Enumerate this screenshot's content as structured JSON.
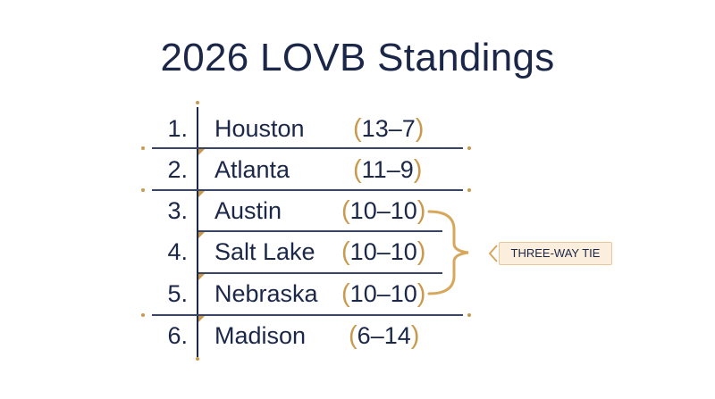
{
  "title": "2026 LOVB Standings",
  "standings": [
    {
      "rank": "1.",
      "team": "Houston",
      "record": "13–7"
    },
    {
      "rank": "2.",
      "team": "Atlanta",
      "record": "11–9"
    },
    {
      "rank": "3.",
      "team": "Austin",
      "record": "10–10"
    },
    {
      "rank": "4.",
      "team": "Salt Lake",
      "record": "10–10"
    },
    {
      "rank": "5.",
      "team": "Nebraska",
      "record": "10–10"
    },
    {
      "rank": "6.",
      "team": "Madison",
      "record": "6–14"
    }
  ],
  "tie_label": "THREE-WAY TIE",
  "colors": {
    "navy": "#1b2748",
    "gold": "#c99a4e",
    "tie_bg": "#fbeedd"
  }
}
